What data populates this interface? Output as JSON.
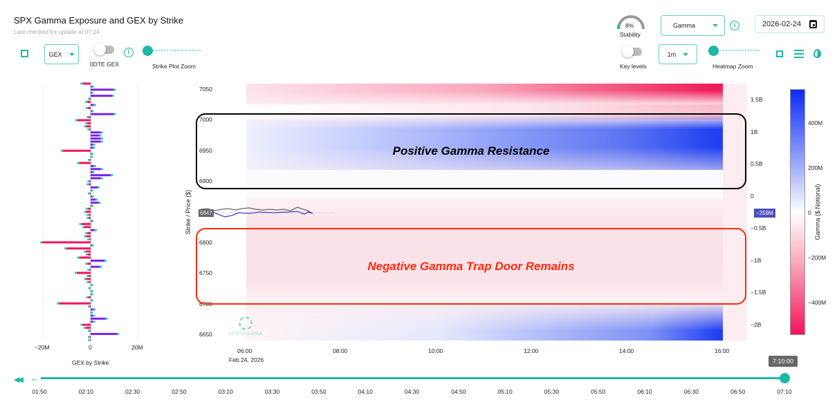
{
  "header": {
    "title": "SPX Gamma Exposure and GEX by Strike",
    "subtitle": "Last checked for update at 07:24"
  },
  "left_controls": {
    "gex_select": "GEX",
    "odte_label": "0DTE GEX",
    "strike_zoom_label": "Strike Plot Zoom"
  },
  "right_controls": {
    "stability_value": "8%",
    "stability_fraction": 0.08,
    "stability_label": "Stability",
    "mode_select": "Gamma",
    "date": "2026-02-24",
    "key_levels_label": "Key levels",
    "interval_select": "1m",
    "heatmap_zoom_label": "Heatmap Zoom"
  },
  "strike_chart": {
    "type": "bar",
    "title": "GEX by Strike",
    "x_ticks": [
      "−20M",
      "0",
      "20M"
    ],
    "xlim": [
      -20,
      20
    ],
    "strike_top": 7060,
    "strike_step": 5,
    "values": [
      -3.4,
      0.5,
      9.7,
      0.4,
      9.0,
      -0.3,
      -1.4,
      1.4,
      -1.2,
      0.4,
      9.7,
      -0.8,
      -5.6,
      -1.4,
      -1.9,
      -0.5,
      4.3,
      3.7,
      4.3,
      4.3,
      1.0,
      1.0,
      -11.6,
      0.3,
      0.1,
      -0.3,
      -4.8,
      1.4,
      4.3,
      0.8,
      8.5,
      4.3,
      -0.5,
      -0.8,
      2.9,
      0.2,
      -0.3,
      0.5,
      2.1,
      3.4,
      0.3,
      -1.2,
      -1.9,
      -0.8,
      -0.8,
      0.3,
      -3.9,
      -2.7,
      1.7,
      -1.4,
      -1.9,
      -0.5,
      -20.3,
      0.5,
      -10.1,
      -1.9,
      -1.2,
      -4.8,
      5.8,
      -1.4,
      3.9,
      -0.5,
      -5.8,
      -0.8,
      -1.9,
      -0.8,
      0.2,
      -0.2,
      0.2,
      0.2,
      -1.0,
      0.2,
      -13.3,
      -0.3,
      1.2,
      0.1,
      1.0,
      6.3,
      1.0,
      -3.4,
      -2.1,
      -0.3,
      11.1,
      -0.3,
      -0.2
    ],
    "colors": {
      "positive": "#7b22e8",
      "negative": "#f5135a",
      "marker": "#2fcfb5"
    }
  },
  "heatmap": {
    "y_label": "Strike / Price ($)",
    "y_ticks": [
      "7050",
      "7000",
      "6950",
      "6900",
      "6800",
      "6750",
      "6700",
      "6650"
    ],
    "x_ticks": [
      "06:00",
      "08:00",
      "10:00",
      "12:00",
      "14:00",
      "16:00"
    ],
    "date_label": "Feb 24, 2026",
    "right_ticks": [
      "1.5B",
      "1B",
      "0.5B",
      "0",
      "−0.5B",
      "−1B",
      "−1.5B",
      "−2B"
    ],
    "price_tag": "6847",
    "gex_tag": "−259M",
    "watermark": "SPOTGAMMA"
  },
  "colorbar": {
    "label": "Gamma ($ Notional)",
    "ticks": [
      "400M",
      "200M",
      "0",
      "−200M",
      "−400M"
    ],
    "colors": {
      "max": "#0b2bff",
      "mid": "#ffffff",
      "min": "#f5135a"
    }
  },
  "annotations": {
    "positive": "Positive Gamma Resistance",
    "negative": "Negative Gamma Trap Door Remains"
  },
  "timeline": {
    "labels": [
      "01:50",
      "02:10",
      "02:30",
      "02:50",
      "03:10",
      "03:30",
      "03:50",
      "04:10",
      "04:30",
      "04:50",
      "05:10",
      "05:30",
      "05:50",
      "06:10",
      "06:30",
      "06:50",
      "07:10"
    ],
    "current": "7:10:00",
    "progress": 1.0
  }
}
